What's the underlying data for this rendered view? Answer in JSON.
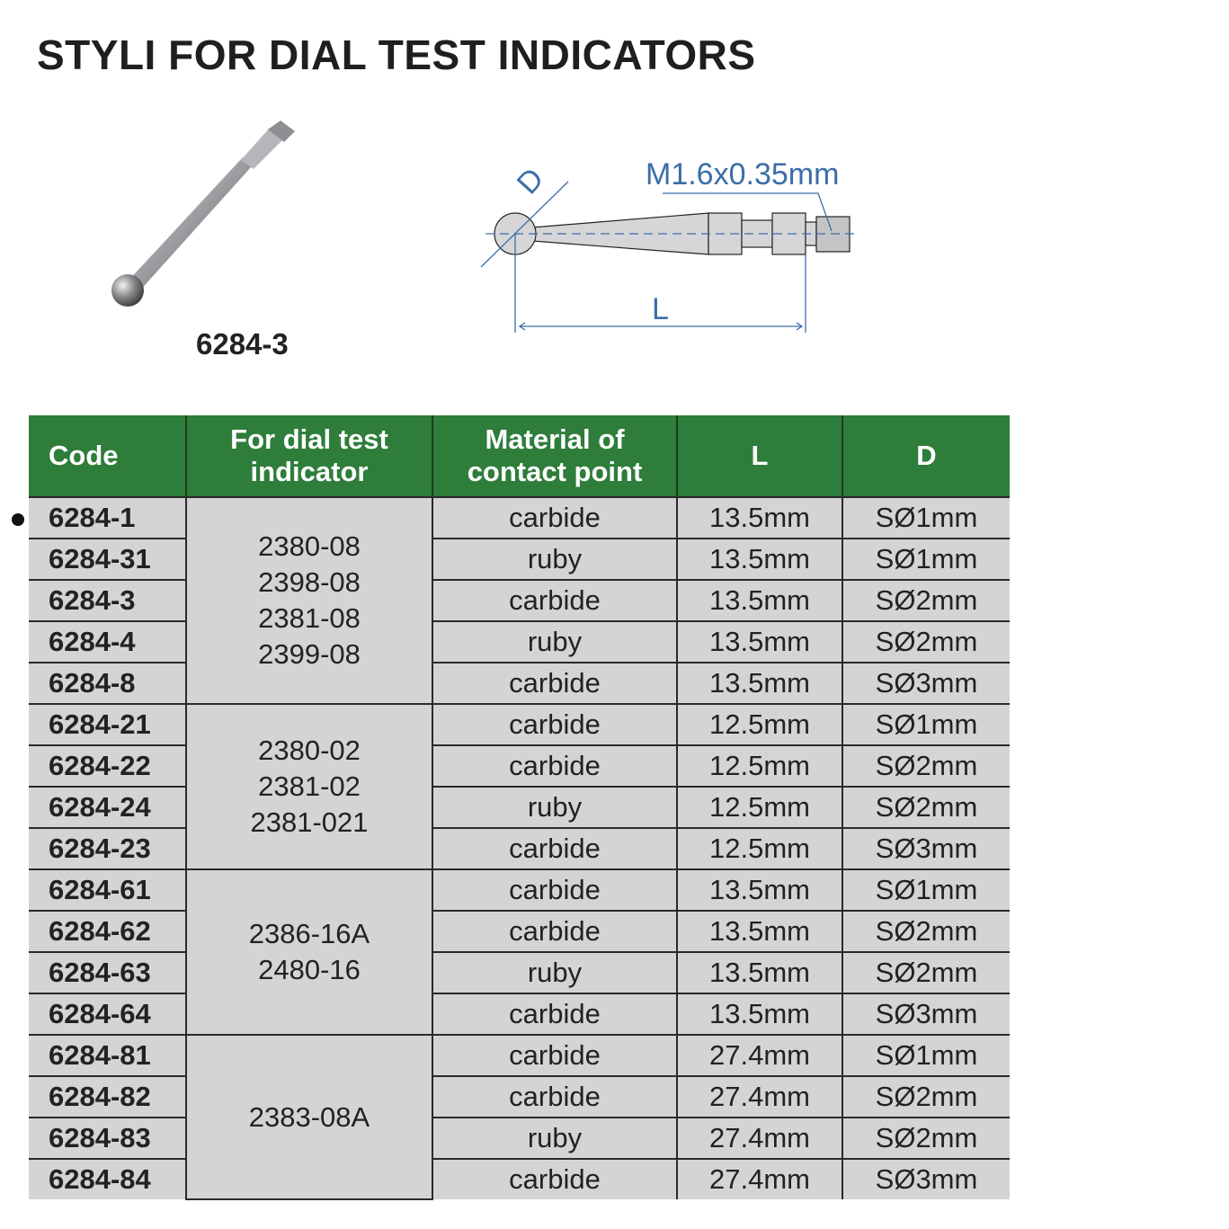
{
  "title": "STYLI FOR DIAL TEST INDICATORS",
  "photo_label": "6284-3",
  "diagram": {
    "thread_label": "M1.6x0.35mm",
    "d_label": "D",
    "l_label": "L"
  },
  "colors": {
    "header_bg": "#2e7d3b",
    "cell_bg": "#d4d4d6",
    "diagram_blue": "#3b6ea8"
  },
  "table": {
    "headers": [
      "Code",
      "For dial test indicator",
      "Material of contact point",
      "L",
      "D"
    ],
    "groups": [
      {
        "indicators": [
          "2380-08",
          "2398-08",
          "2381-08",
          "2399-08"
        ],
        "rows": [
          {
            "code": "6284-1",
            "material": "carbide",
            "L": "13.5mm",
            "D": "SØ1mm"
          },
          {
            "code": "6284-31",
            "material": "ruby",
            "L": "13.5mm",
            "D": "SØ1mm"
          },
          {
            "code": "6284-3",
            "material": "carbide",
            "L": "13.5mm",
            "D": "SØ2mm"
          },
          {
            "code": "6284-4",
            "material": "ruby",
            "L": "13.5mm",
            "D": "SØ2mm"
          },
          {
            "code": "6284-8",
            "material": "carbide",
            "L": "13.5mm",
            "D": "SØ3mm"
          }
        ]
      },
      {
        "indicators": [
          "2380-02",
          "2381-02",
          "2381-021"
        ],
        "rows": [
          {
            "code": "6284-21",
            "material": "carbide",
            "L": "12.5mm",
            "D": "SØ1mm"
          },
          {
            "code": "6284-22",
            "material": "carbide",
            "L": "12.5mm",
            "D": "SØ2mm"
          },
          {
            "code": "6284-24",
            "material": "ruby",
            "L": "12.5mm",
            "D": "SØ2mm"
          },
          {
            "code": "6284-23",
            "material": "carbide",
            "L": "12.5mm",
            "D": "SØ3mm"
          }
        ]
      },
      {
        "indicators": [
          "2386-16A",
          "2480-16"
        ],
        "rows": [
          {
            "code": "6284-61",
            "material": "carbide",
            "L": "13.5mm",
            "D": "SØ1mm"
          },
          {
            "code": "6284-62",
            "material": "carbide",
            "L": "13.5mm",
            "D": "SØ2mm"
          },
          {
            "code": "6284-63",
            "material": "ruby",
            "L": "13.5mm",
            "D": "SØ2mm"
          },
          {
            "code": "6284-64",
            "material": "carbide",
            "L": "13.5mm",
            "D": "SØ3mm"
          }
        ]
      },
      {
        "indicators": [
          "2383-08A"
        ],
        "rows": [
          {
            "code": "6284-81",
            "material": "carbide",
            "L": "27.4mm",
            "D": "SØ1mm"
          },
          {
            "code": "6284-82",
            "material": "carbide",
            "L": "27.4mm",
            "D": "SØ2mm"
          },
          {
            "code": "6284-83",
            "material": "ruby",
            "L": "27.4mm",
            "D": "SØ2mm"
          },
          {
            "code": "6284-84",
            "material": "carbide",
            "L": "27.4mm",
            "D": "SØ3mm"
          }
        ]
      }
    ]
  }
}
